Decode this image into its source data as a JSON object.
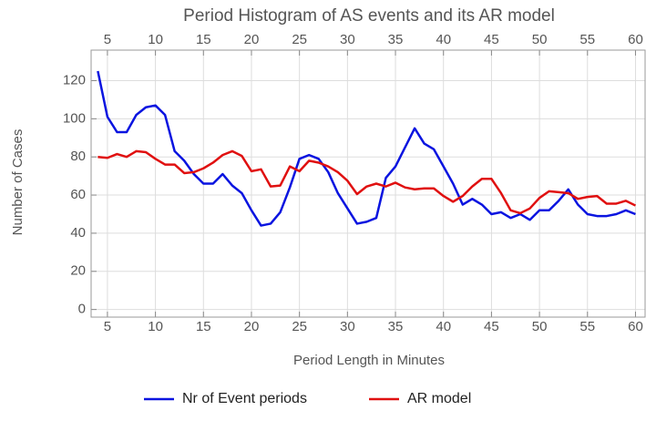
{
  "chart_data": {
    "type": "line",
    "title": "Period Histogram of AS events and its AR model",
    "xlabel": "Period Length in Minutes",
    "ylabel": "Number of Cases",
    "x": [
      4,
      5,
      6,
      7,
      8,
      9,
      10,
      11,
      12,
      13,
      14,
      15,
      16,
      17,
      18,
      19,
      20,
      21,
      22,
      23,
      24,
      25,
      26,
      27,
      28,
      29,
      30,
      31,
      32,
      33,
      34,
      35,
      36,
      37,
      38,
      39,
      40,
      41,
      42,
      43,
      44,
      45,
      46,
      47,
      48,
      49,
      50,
      51,
      52,
      53,
      54,
      55,
      56,
      57,
      58,
      59,
      60
    ],
    "series": [
      {
        "name": "Nr of Event periods",
        "color": "#0a14e0",
        "values": [
          125,
          101,
          93,
          93,
          102,
          106,
          107,
          102,
          83,
          78,
          71,
          66,
          66,
          71,
          65,
          61,
          52,
          44,
          45,
          51,
          64,
          79,
          81,
          79,
          72,
          61,
          53,
          45,
          46,
          48,
          69,
          75,
          85,
          95,
          87,
          84,
          75,
          66,
          55,
          58,
          55,
          50,
          51,
          48,
          50,
          47,
          52,
          52,
          57,
          63,
          55,
          50,
          49,
          49,
          50,
          52,
          50
        ]
      },
      {
        "name": "AR model",
        "color": "#e01010",
        "values": [
          80,
          79.5,
          81.5,
          80,
          83,
          82.5,
          79,
          76,
          76,
          71.5,
          72,
          74,
          77,
          81,
          83,
          80.5,
          72.5,
          73.5,
          64.5,
          65,
          75,
          72.5,
          78,
          77,
          75,
          72,
          67.5,
          60.5,
          64.5,
          66,
          64.5,
          66.5,
          64,
          63,
          63.5,
          63.5,
          59.5,
          56.5,
          59.5,
          64.5,
          68.5,
          68.5,
          61,
          52,
          50.5,
          53,
          58.5,
          62,
          61.5,
          61,
          58,
          59,
          59.5,
          55.5,
          55.5,
          57,
          54.5
        ]
      }
    ],
    "xlim": [
      3.3,
      61
    ],
    "ylim": [
      -4,
      136
    ],
    "xticks": [
      5,
      10,
      15,
      20,
      25,
      30,
      35,
      40,
      45,
      50,
      55,
      60
    ],
    "yticks": [
      0,
      20,
      40,
      60,
      80,
      100,
      120
    ],
    "grid": true,
    "legend": "bottom"
  }
}
